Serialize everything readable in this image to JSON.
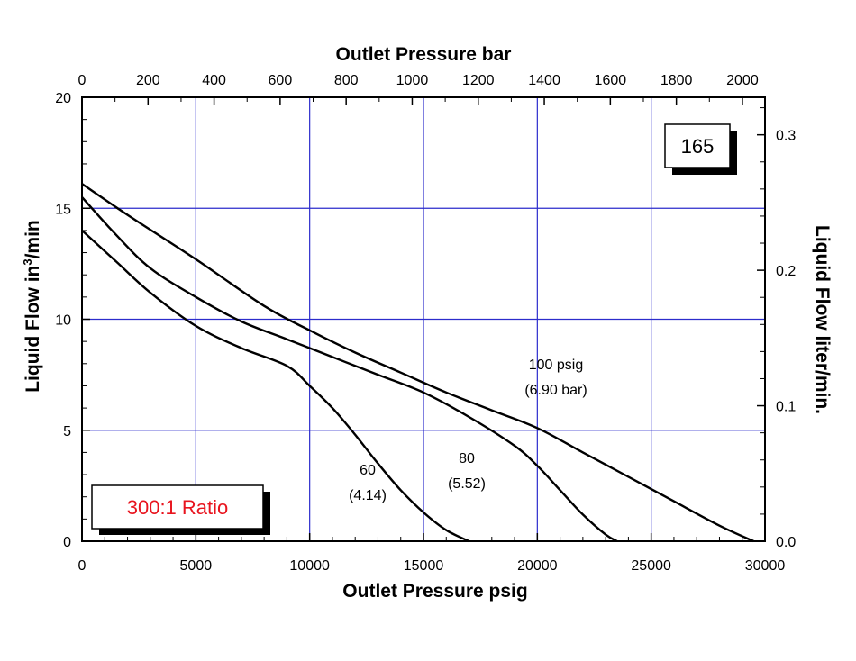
{
  "chart_data": {
    "type": "line",
    "xlabel": "Outlet Pressure psig",
    "x2label": "Outlet Pressure bar",
    "ylabel_main": "Liquid Flow in",
    "ylabel_sup": "3",
    "ylabel_tail": "/min",
    "y2label": "Liquid Flow liter/min.",
    "xlim": [
      0,
      30000
    ],
    "ylim": [
      0,
      20
    ],
    "x2lim": [
      0,
      2068.4
    ],
    "y2lim": [
      0,
      0.3277
    ],
    "x_ticks": [
      "0",
      "5000",
      "10000",
      "15000",
      "20000",
      "25000",
      "30000"
    ],
    "y_ticks": [
      "0",
      "5",
      "10",
      "15",
      "20"
    ],
    "x2_ticks": [
      "0",
      "200",
      "400",
      "600",
      "800",
      "1000",
      "1200",
      "1400",
      "1600",
      "1800",
      "2000"
    ],
    "y2_ticks": [
      "0.0",
      "0.1",
      "0.2",
      "0.3"
    ],
    "grid": true,
    "series": [
      {
        "name": "60",
        "label_lines": [
          "60",
          "(4.14)"
        ],
        "x": [
          0,
          1500,
          3000,
          5000,
          7000,
          9000,
          10000,
          11000,
          12000,
          13000,
          14000,
          15000,
          16000,
          17000
        ],
        "y": [
          14.0,
          12.6,
          11.2,
          9.7,
          8.7,
          7.9,
          7.0,
          6.0,
          4.8,
          3.5,
          2.3,
          1.3,
          0.5,
          0.0
        ]
      },
      {
        "name": "80",
        "label_lines": [
          "80",
          "(5.52)"
        ],
        "x": [
          0,
          1500,
          3000,
          5000,
          7000,
          9000,
          11000,
          13000,
          15000,
          17000,
          19000,
          20000,
          21000,
          22000,
          23000,
          23500
        ],
        "y": [
          15.5,
          13.8,
          12.3,
          11.0,
          9.9,
          9.1,
          8.3,
          7.5,
          6.7,
          5.6,
          4.3,
          3.4,
          2.3,
          1.2,
          0.3,
          0.0
        ]
      },
      {
        "name": "100 psig",
        "label_lines": [
          "100 psig",
          "(6.90 bar)"
        ],
        "x": [
          0,
          2000,
          5000,
          8000,
          10000,
          12000,
          14000,
          16000,
          18000,
          20000,
          22000,
          24000,
          26000,
          28000,
          29500
        ],
        "y": [
          16.1,
          14.7,
          12.7,
          10.6,
          9.5,
          8.5,
          7.6,
          6.7,
          5.9,
          5.1,
          4.0,
          2.9,
          1.8,
          0.7,
          0.0
        ]
      }
    ],
    "model_box": "165",
    "ratio_box": "300:1 Ratio",
    "colors": {
      "grid": "#2c2ccc",
      "curve": "#000000",
      "ratio_text": "#e8141e"
    }
  }
}
